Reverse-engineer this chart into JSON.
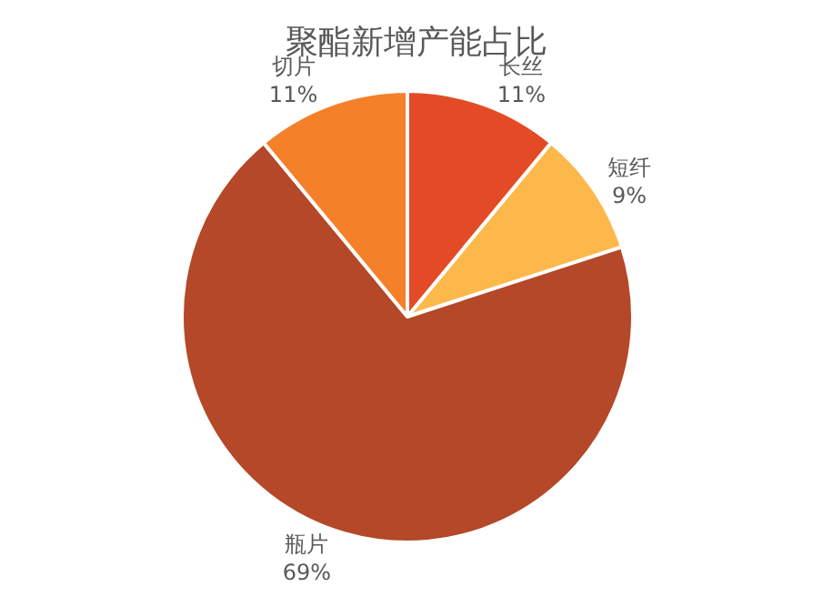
{
  "chart_data": {
    "type": "pie",
    "title": "聚酯新增产能占比",
    "categories": [
      "长丝",
      "短纤",
      "瓶片",
      "切片"
    ],
    "values": [
      11,
      9,
      69,
      11
    ],
    "value_labels": [
      "11%",
      "9%",
      "69%",
      "11%"
    ],
    "colors": [
      "#e34b26",
      "#fdb84c",
      "#b44828",
      "#f5802a"
    ],
    "legend": false
  }
}
